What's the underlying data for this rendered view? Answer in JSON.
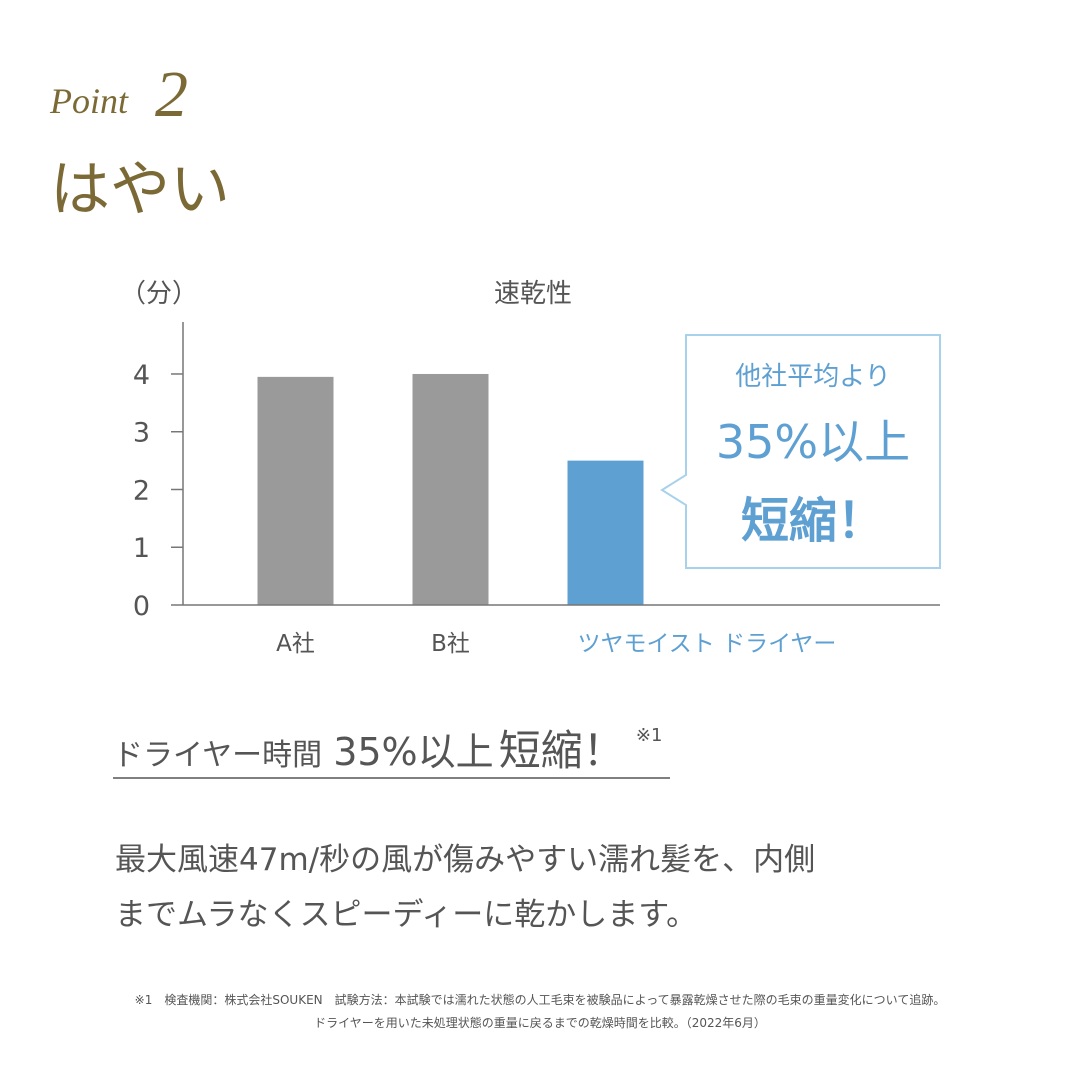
{
  "header": {
    "point_label": "Point",
    "point_number": "2",
    "title": "はやい"
  },
  "chart_data": {
    "type": "bar",
    "title": "速乾性",
    "y_label": "（分）",
    "categories": [
      "A社",
      "B社",
      "ツヤモイスト ドライヤー"
    ],
    "values": [
      3.95,
      4.0,
      2.5
    ],
    "colors": [
      "#9a9a9a",
      "#9a9a9a",
      "#5fa0d2"
    ],
    "ylim": [
      0,
      4.9
    ],
    "yticks": [
      0,
      1,
      2,
      3,
      4
    ],
    "callout": [
      "他社平均より",
      "35%以上",
      "短縮！"
    ]
  },
  "headline": {
    "lead": "ドライヤー時間",
    "figure": "35%以上",
    "emphasis": "短縮！",
    "note_mark": "※1"
  },
  "body": [
    "最大風速47m/秒の風が傷みやすい濡れ髪を、内側",
    "までムラなくスピーディーに乾かします。"
  ],
  "footnote": [
    "※1　検査機関：株式会社SOUKEN　試験方法：本試験では濡れた状態の人工毛束を被験品によって暴露乾燥させた際の毛束の重量変化について追跡。",
    "ドライヤーを用いた未処理状態の重量に戻るまでの乾燥時間を比較。（2022年6月）"
  ]
}
